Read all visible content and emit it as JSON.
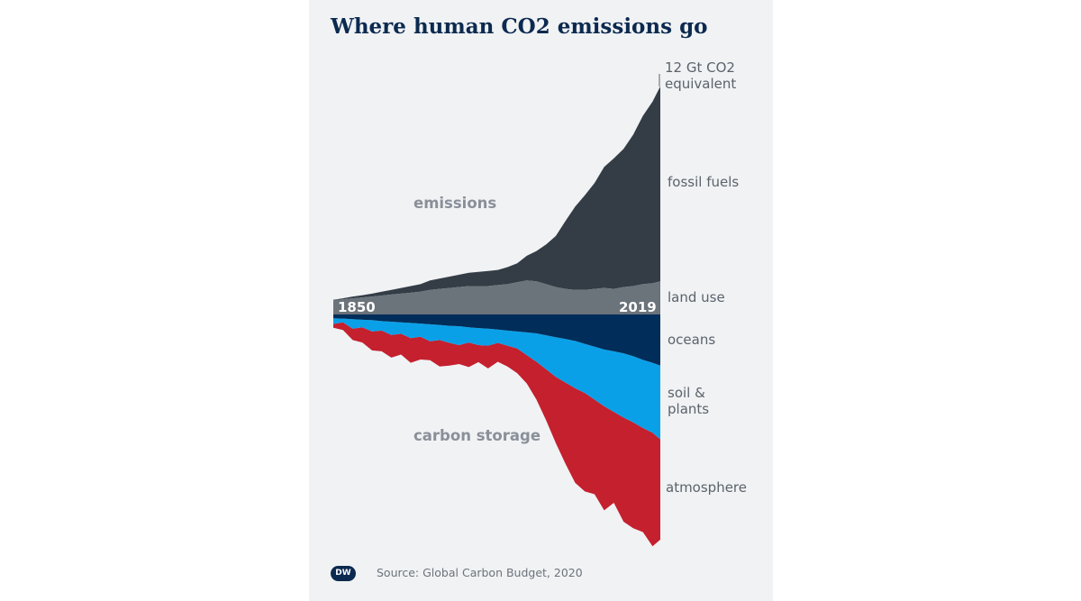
{
  "title": "Where human CO2 emissions go",
  "source": "Source: Global Carbon Budget, 2020",
  "logo": "DW",
  "chart_data": {
    "type": "area",
    "title": "Where human CO2 emissions go",
    "unit_label": [
      "12 Gt CO2",
      "equivalent"
    ],
    "group_labels": {
      "top": "emissions",
      "bottom": "carbon storage"
    },
    "x_start_label": "1850",
    "x_end_label": "2019",
    "x": [
      1850,
      1855,
      1860,
      1865,
      1870,
      1875,
      1880,
      1885,
      1890,
      1895,
      1900,
      1905,
      1910,
      1915,
      1920,
      1925,
      1930,
      1935,
      1940,
      1945,
      1950,
      1955,
      1960,
      1965,
      1970,
      1975,
      1980,
      1985,
      1990,
      1995,
      2000,
      2005,
      2010,
      2015,
      2019
    ],
    "series_up": [
      {
        "name": "land use",
        "color": "#6b737b",
        "values": [
          0.76,
          0.8,
          0.85,
          0.9,
          0.95,
          1.0,
          1.05,
          1.1,
          1.15,
          1.2,
          1.3,
          1.35,
          1.4,
          1.45,
          1.5,
          1.5,
          1.5,
          1.55,
          1.6,
          1.7,
          1.8,
          1.75,
          1.6,
          1.45,
          1.35,
          1.3,
          1.3,
          1.35,
          1.4,
          1.35,
          1.45,
          1.5,
          1.6,
          1.65,
          1.75
        ]
      },
      {
        "name": "fossil fuels",
        "color": "#343d46",
        "values": [
          0.02,
          0.05,
          0.1,
          0.12,
          0.15,
          0.2,
          0.25,
          0.3,
          0.35,
          0.4,
          0.5,
          0.55,
          0.6,
          0.65,
          0.7,
          0.75,
          0.8,
          0.8,
          0.9,
          1.0,
          1.3,
          1.6,
          2.1,
          2.7,
          3.6,
          4.4,
          5.0,
          5.6,
          6.4,
          6.9,
          7.3,
          8.0,
          8.9,
          9.6,
          10.3
        ]
      }
    ],
    "series_down": [
      {
        "name": "oceans",
        "color": "#002d5a",
        "values": [
          0.2,
          0.22,
          0.25,
          0.28,
          0.3,
          0.35,
          0.38,
          0.42,
          0.45,
          0.48,
          0.52,
          0.55,
          0.6,
          0.62,
          0.68,
          0.72,
          0.75,
          0.8,
          0.85,
          0.9,
          0.95,
          1.0,
          1.1,
          1.2,
          1.3,
          1.4,
          1.55,
          1.7,
          1.85,
          1.95,
          2.05,
          2.2,
          2.4,
          2.55,
          2.7
        ]
      },
      {
        "name": "soil & plants",
        "label_lines": [
          "soil &",
          "plants"
        ],
        "color": "#0aa0e8",
        "values": [
          0.3,
          0.2,
          0.5,
          0.4,
          0.6,
          0.5,
          0.7,
          0.6,
          0.8,
          0.7,
          0.9,
          0.8,
          0.9,
          1.0,
          0.8,
          0.9,
          0.9,
          0.7,
          0.8,
          0.9,
          1.2,
          1.5,
          1.8,
          2.1,
          2.3,
          2.5,
          2.6,
          2.8,
          3.0,
          3.2,
          3.4,
          3.5,
          3.6,
          3.7,
          3.9
        ]
      },
      {
        "name": "atmosphere",
        "color": "#c4202e",
        "values": [
          0.2,
          0.4,
          0.6,
          0.8,
          1.0,
          1.1,
          1.2,
          1.1,
          1.3,
          1.2,
          1.0,
          1.4,
          1.2,
          1.0,
          1.3,
          0.9,
          1.2,
          1.0,
          1.1,
          1.3,
          1.5,
          2.0,
          2.7,
          3.5,
          4.3,
          5.0,
          5.2,
          5.0,
          5.5,
          4.8,
          5.5,
          5.6,
          5.5,
          6.0,
          5.3
        ]
      }
    ]
  }
}
